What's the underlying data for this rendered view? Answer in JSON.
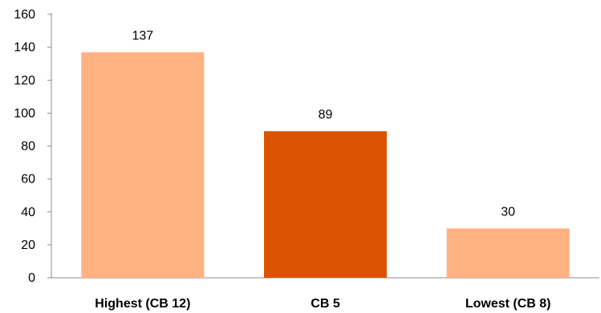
{
  "chart_data": {
    "type": "bar",
    "categories": [
      "Highest (CB 12)",
      "CB 5",
      "Lowest (CB 8)"
    ],
    "values": [
      137,
      89,
      30
    ],
    "data_labels": [
      "137",
      "89",
      "30"
    ],
    "bar_colors": [
      "#FFB182",
      "#DB5300",
      "#FFB182"
    ],
    "ylim": [
      0,
      160
    ],
    "yticks": [
      0,
      20,
      40,
      60,
      80,
      100,
      120,
      140,
      160
    ],
    "ytick_labels": [
      "0",
      "20",
      "40",
      "60",
      "80",
      "100",
      "120",
      "140",
      "160"
    ],
    "grid": false,
    "legend": "none"
  }
}
